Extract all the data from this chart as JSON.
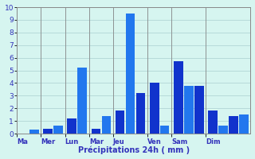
{
  "xlabel": "Précipitations 24h ( mm )",
  "ylim": [
    0,
    10
  ],
  "yticks": [
    0,
    1,
    2,
    3,
    4,
    5,
    6,
    7,
    8,
    9,
    10
  ],
  "background_color": "#d6f5f0",
  "grid_color": "#aacfcf",
  "bar_color_main": "#1133cc",
  "bar_color_alt": "#2277ee",
  "groups": [
    {
      "day": "Ma",
      "values": [
        0.0,
        0.3
      ]
    },
    {
      "day": "Mer",
      "values": [
        0.4,
        0.6
      ]
    },
    {
      "day": "Lun",
      "values": [
        1.2,
        5.2
      ]
    },
    {
      "day": "Mar",
      "values": [
        0.4,
        1.4
      ]
    },
    {
      "day": "Jeu",
      "values": [
        1.8,
        9.5,
        3.2
      ]
    },
    {
      "day": "Ven",
      "values": [
        4.0,
        0.6
      ]
    },
    {
      "day": "Sam",
      "values": [
        5.7,
        3.8,
        3.8
      ]
    },
    {
      "day": "Dim",
      "values": [
        1.8,
        0.6,
        1.4,
        1.5
      ]
    }
  ]
}
